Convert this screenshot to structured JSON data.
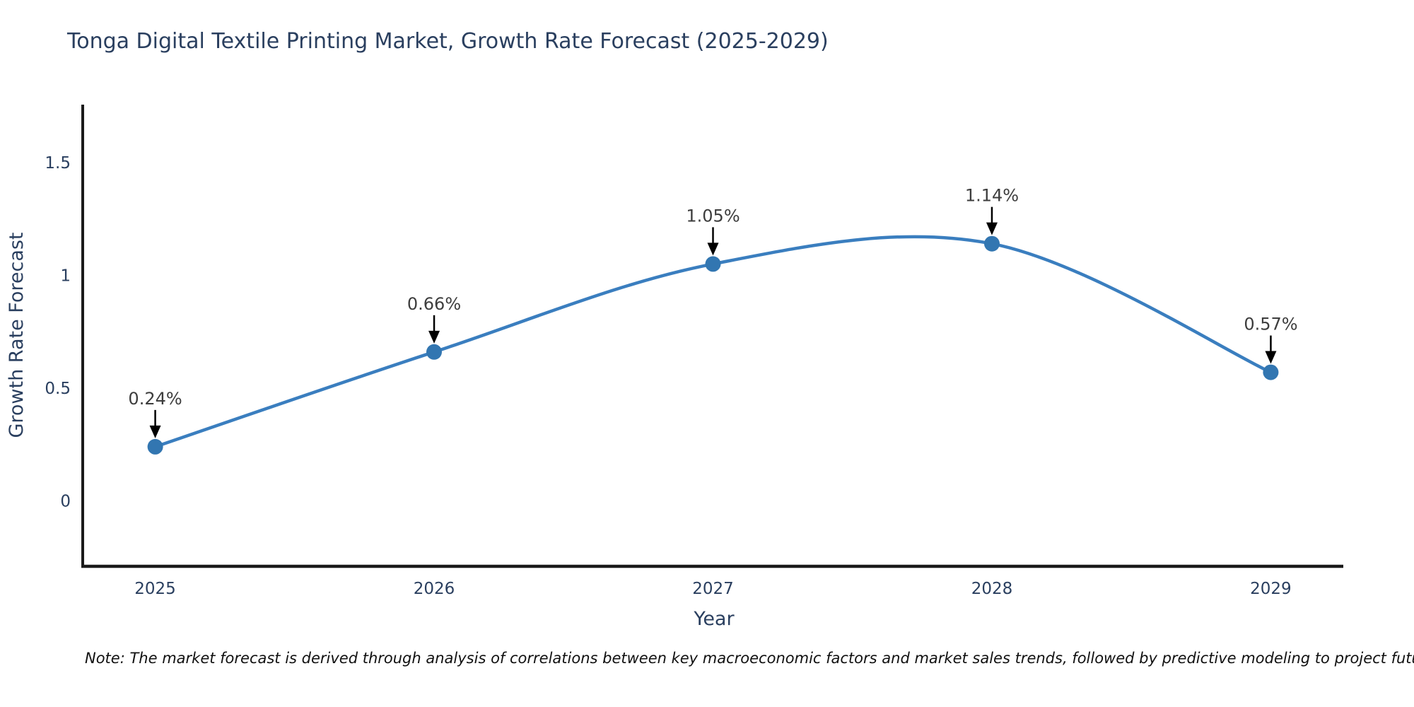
{
  "title": {
    "text": "Tonga Digital Textile Printing Market, Growth Rate Forecast (2025-2029)"
  },
  "note": {
    "text": "Note: The market forecast is derived through analysis of correlations between key macroeconomic factors and market sales trends, followed by predictive modeling to project future sales"
  },
  "chart_data": {
    "type": "line",
    "title": "Tonga Digital Textile Printing Market, Growth Rate Forecast (2025-2029)",
    "xlabel": "Year",
    "ylabel": "Growth Rate Forecast",
    "x": [
      2025,
      2026,
      2027,
      2028,
      2029
    ],
    "values": [
      0.24,
      0.66,
      1.05,
      1.14,
      0.57
    ],
    "point_labels": [
      "0.24%",
      "0.66%",
      "1.05%",
      "1.14%",
      "0.57%"
    ],
    "series_name": "Growth Rate Forecast",
    "y_ticks": [
      0,
      0.5,
      1,
      1.5
    ],
    "x_tick_labels": [
      "2025",
      "2026",
      "2027",
      "2028",
      "2029"
    ],
    "x_range": [
      2024.74,
      2029.26
    ],
    "y_range": [
      -0.29,
      1.75
    ],
    "line_shape": "spline",
    "grid": false,
    "legend": false,
    "annotation_arrows": true,
    "colors": {
      "line": "#3a7ebf",
      "marker": "#3276b1",
      "axis": "#1a1a1a",
      "text": "#2a3f5f",
      "annotation": "#3d3d3d",
      "arrow": "#000000",
      "background": "#ffffff"
    }
  }
}
